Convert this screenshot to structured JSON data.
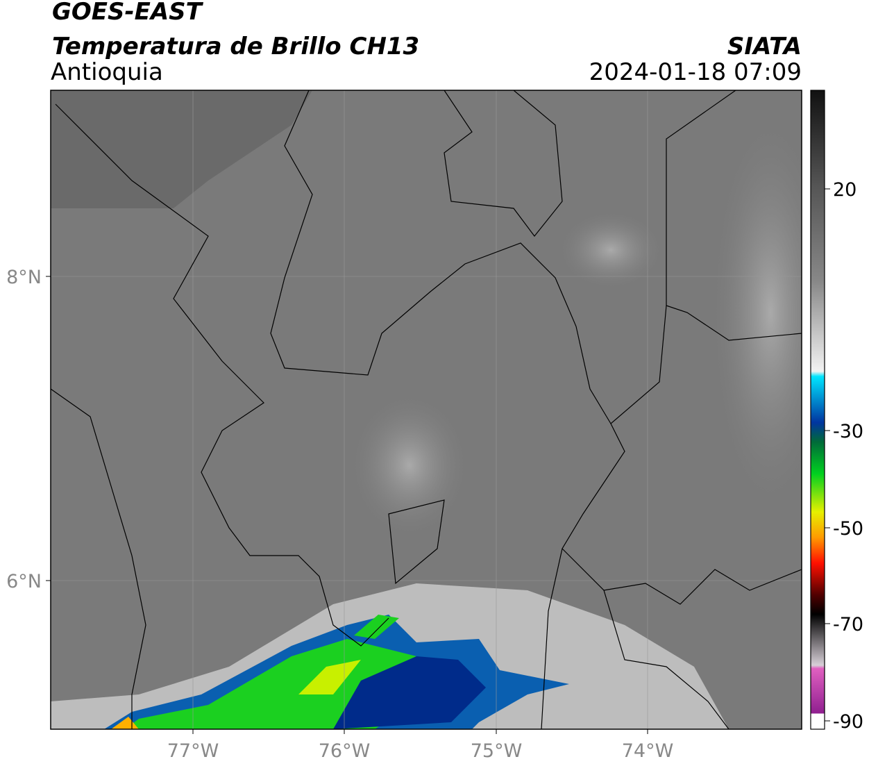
{
  "header": {
    "title": "GOES-EAST",
    "subtitle": "Temperatura de Brillo CH13",
    "region": "Antioquia",
    "source": "SIATA",
    "timestamp": "2024-01-18 07:09"
  },
  "map": {
    "lat_labels": [
      "8°N",
      "6°N"
    ],
    "lon_labels": [
      "77°W",
      "76°W",
      "75°W",
      "74°W"
    ]
  },
  "colorbar": {
    "tick_labels": [
      "20",
      "-30",
      "-50",
      "-70",
      "-90"
    ]
  }
}
